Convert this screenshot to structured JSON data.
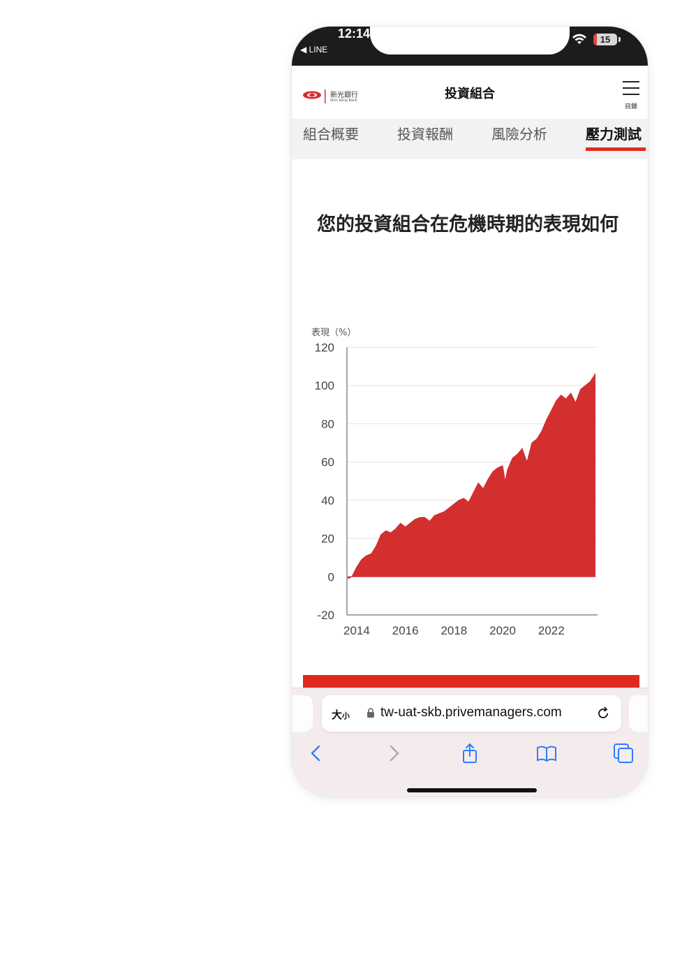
{
  "status_bar": {
    "time": "12:14",
    "back_app": "◀ LINE",
    "battery": "15"
  },
  "header": {
    "logo_zh": "新光銀行",
    "logo_en": "Shin Kong Bank",
    "title": "投資組合",
    "menu_label": "目錄"
  },
  "tabs": [
    {
      "label": "組合概要"
    },
    {
      "label": "投資報酬"
    },
    {
      "label": "風險分析"
    },
    {
      "label": "壓力測試"
    }
  ],
  "active_tab": "壓力測試",
  "section": {
    "title": "您的投資組合在危機時期的表現如何"
  },
  "chart_data": {
    "type": "area",
    "ylabel": "表現（%）",
    "ylim": [
      -20,
      120
    ],
    "yticks": [
      "120",
      "100",
      "80",
      "60",
      "40",
      "20",
      "0",
      "-20"
    ],
    "xticks": [
      "2014",
      "2016",
      "2018",
      "2020",
      "2022"
    ],
    "xlim": [
      2013.6,
      2023.9
    ],
    "color": "#d32f2f",
    "series": [
      {
        "x": [
          2013.65,
          2013.8,
          2014.0,
          2014.2,
          2014.4,
          2014.6,
          2014.8,
          2015.0,
          2015.2,
          2015.4,
          2015.6,
          2015.8,
          2016.0,
          2016.2,
          2016.4,
          2016.6,
          2016.8,
          2017.0,
          2017.2,
          2017.4,
          2017.6,
          2017.8,
          2018.0,
          2018.2,
          2018.4,
          2018.6,
          2018.8,
          2019.0,
          2019.2,
          2019.4,
          2019.6,
          2019.8,
          2020.0,
          2020.1,
          2020.2,
          2020.4,
          2020.6,
          2020.8,
          2021.0,
          2021.2,
          2021.4,
          2021.6,
          2021.8,
          2022.0,
          2022.2,
          2022.4,
          2022.6,
          2022.8,
          2023.0,
          2023.2,
          2023.4,
          2023.6,
          2023.8
        ],
        "y": [
          -1,
          0,
          5,
          9,
          11,
          12,
          16,
          22,
          24,
          23,
          25,
          28,
          26,
          28,
          30,
          31,
          31,
          29,
          32,
          33,
          34,
          36,
          38,
          40,
          41,
          39,
          44,
          49,
          46,
          51,
          55,
          57,
          58,
          50,
          56,
          62,
          64,
          67,
          60,
          70,
          72,
          76,
          82,
          87,
          92,
          95,
          93,
          96,
          91,
          98,
          100,
          102,
          106
        ]
      }
    ]
  }
}
